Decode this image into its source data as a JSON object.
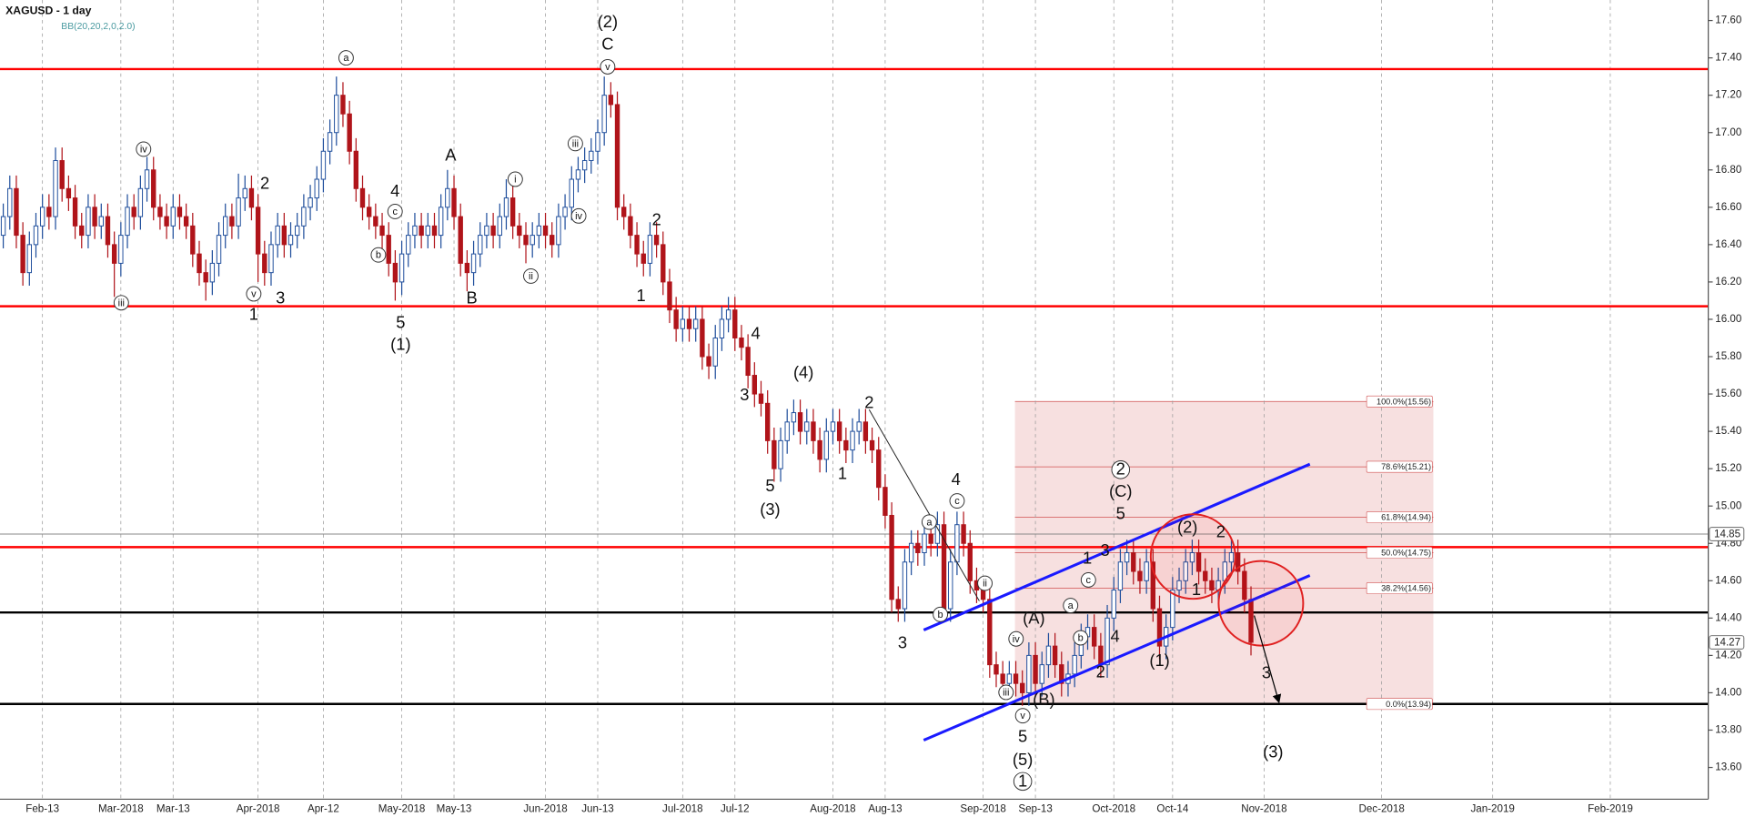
{
  "chart_data": {
    "type": "candlestick",
    "title": "XAGUSD - 1 day",
    "subtitle": "BB(20,20,2,0,2.0)",
    "up_color": "#1f4e9c",
    "down_color": "#b0141a",
    "candles": [
      [
        16.45,
        16.62,
        16.38,
        16.55
      ],
      [
        16.55,
        16.77,
        16.48,
        16.7
      ],
      [
        16.7,
        16.77,
        16.38,
        16.45
      ],
      [
        16.45,
        16.52,
        16.18,
        16.25
      ],
      [
        16.25,
        16.47,
        16.18,
        16.4
      ],
      [
        16.4,
        16.57,
        16.33,
        16.5
      ],
      [
        16.5,
        16.67,
        16.43,
        16.6
      ],
      [
        16.6,
        16.67,
        16.48,
        16.55
      ],
      [
        16.55,
        16.92,
        16.48,
        16.85
      ],
      [
        16.85,
        16.92,
        16.63,
        16.7
      ],
      [
        16.7,
        16.77,
        16.58,
        16.65
      ],
      [
        16.65,
        16.72,
        16.43,
        16.5
      ],
      [
        16.5,
        16.57,
        16.38,
        16.45
      ],
      [
        16.45,
        16.67,
        16.38,
        16.6
      ],
      [
        16.6,
        16.67,
        16.43,
        16.5
      ],
      [
        16.5,
        16.62,
        16.43,
        16.55
      ],
      [
        16.55,
        16.62,
        16.33,
        16.4
      ],
      [
        16.4,
        16.47,
        16.12,
        16.3
      ],
      [
        16.3,
        16.52,
        16.23,
        16.45
      ],
      [
        16.45,
        16.67,
        16.38,
        16.6
      ],
      [
        16.6,
        16.67,
        16.48,
        16.55
      ],
      [
        16.55,
        16.77,
        16.48,
        16.7
      ],
      [
        16.7,
        16.87,
        16.63,
        16.8
      ],
      [
        16.8,
        16.87,
        16.53,
        16.6
      ],
      [
        16.6,
        16.67,
        16.48,
        16.55
      ],
      [
        16.55,
        16.62,
        16.43,
        16.5
      ],
      [
        16.5,
        16.67,
        16.43,
        16.6
      ],
      [
        16.6,
        16.67,
        16.48,
        16.55
      ],
      [
        16.55,
        16.62,
        16.43,
        16.5
      ],
      [
        16.5,
        16.57,
        16.28,
        16.35
      ],
      [
        16.35,
        16.42,
        16.18,
        16.25
      ],
      [
        16.25,
        16.32,
        16.1,
        16.2
      ],
      [
        16.2,
        16.37,
        16.13,
        16.3
      ],
      [
        16.3,
        16.52,
        16.23,
        16.45
      ],
      [
        16.45,
        16.62,
        16.38,
        16.55
      ],
      [
        16.55,
        16.62,
        16.43,
        16.5
      ],
      [
        16.5,
        16.78,
        16.43,
        16.65
      ],
      [
        16.65,
        16.77,
        16.58,
        16.7
      ],
      [
        16.7,
        16.77,
        16.53,
        16.6
      ],
      [
        16.6,
        16.67,
        16.2,
        16.35
      ],
      [
        16.35,
        16.42,
        16.18,
        16.25
      ],
      [
        16.25,
        16.47,
        16.18,
        16.4
      ],
      [
        16.4,
        16.57,
        16.33,
        16.5
      ],
      [
        16.5,
        16.57,
        16.33,
        16.4
      ],
      [
        16.4,
        16.52,
        16.33,
        16.45
      ],
      [
        16.45,
        16.57,
        16.38,
        16.5
      ],
      [
        16.5,
        16.67,
        16.43,
        16.6
      ],
      [
        16.6,
        16.72,
        16.53,
        16.65
      ],
      [
        16.65,
        16.82,
        16.58,
        16.75
      ],
      [
        16.75,
        16.97,
        16.68,
        16.9
      ],
      [
        16.9,
        17.07,
        16.83,
        17.0
      ],
      [
        17.0,
        17.3,
        16.93,
        17.2
      ],
      [
        17.2,
        17.27,
        17.03,
        17.1
      ],
      [
        17.1,
        17.17,
        16.83,
        16.9
      ],
      [
        16.9,
        16.97,
        16.63,
        16.7
      ],
      [
        16.7,
        16.77,
        16.53,
        16.6
      ],
      [
        16.6,
        16.67,
        16.48,
        16.55
      ],
      [
        16.55,
        16.62,
        16.43,
        16.5
      ],
      [
        16.5,
        16.57,
        16.38,
        16.45
      ],
      [
        16.45,
        16.52,
        16.23,
        16.3
      ],
      [
        16.3,
        16.37,
        16.1,
        16.2
      ],
      [
        16.2,
        16.42,
        16.13,
        16.35
      ],
      [
        16.35,
        16.52,
        16.28,
        16.45
      ],
      [
        16.45,
        16.57,
        16.38,
        16.5
      ],
      [
        16.5,
        16.57,
        16.38,
        16.45
      ],
      [
        16.45,
        16.57,
        16.38,
        16.5
      ],
      [
        16.5,
        16.57,
        16.38,
        16.45
      ],
      [
        16.45,
        16.67,
        16.38,
        16.6
      ],
      [
        16.6,
        16.8,
        16.53,
        16.7
      ],
      [
        16.7,
        16.77,
        16.48,
        16.55
      ],
      [
        16.55,
        16.62,
        16.23,
        16.3
      ],
      [
        16.3,
        16.37,
        16.15,
        16.25
      ],
      [
        16.25,
        16.42,
        16.18,
        16.35
      ],
      [
        16.35,
        16.52,
        16.28,
        16.45
      ],
      [
        16.45,
        16.57,
        16.38,
        16.5
      ],
      [
        16.5,
        16.57,
        16.38,
        16.45
      ],
      [
        16.45,
        16.62,
        16.38,
        16.55
      ],
      [
        16.55,
        16.75,
        16.48,
        16.65
      ],
      [
        16.65,
        16.72,
        16.43,
        16.5
      ],
      [
        16.5,
        16.57,
        16.38,
        16.45
      ],
      [
        16.45,
        16.52,
        16.3,
        16.4
      ],
      [
        16.4,
        16.52,
        16.33,
        16.45
      ],
      [
        16.45,
        16.57,
        16.38,
        16.5
      ],
      [
        16.5,
        16.57,
        16.38,
        16.45
      ],
      [
        16.45,
        16.52,
        16.33,
        16.4
      ],
      [
        16.4,
        16.62,
        16.33,
        16.55
      ],
      [
        16.55,
        16.67,
        16.48,
        16.6
      ],
      [
        16.6,
        16.82,
        16.53,
        16.75
      ],
      [
        16.75,
        16.87,
        16.68,
        16.8
      ],
      [
        16.8,
        16.92,
        16.73,
        16.85
      ],
      [
        16.85,
        16.97,
        16.78,
        16.9
      ],
      [
        16.9,
        17.07,
        16.83,
        17.0
      ],
      [
        17.0,
        17.3,
        16.93,
        17.2
      ],
      [
        17.2,
        17.27,
        17.08,
        17.15
      ],
      [
        17.15,
        17.22,
        16.53,
        16.6
      ],
      [
        16.6,
        16.67,
        16.48,
        16.55
      ],
      [
        16.55,
        16.62,
        16.38,
        16.45
      ],
      [
        16.45,
        16.52,
        16.28,
        16.35
      ],
      [
        16.35,
        16.42,
        16.23,
        16.3
      ],
      [
        16.3,
        16.52,
        16.23,
        16.45
      ],
      [
        16.45,
        16.52,
        16.33,
        16.4
      ],
      [
        16.4,
        16.47,
        16.13,
        16.2
      ],
      [
        16.2,
        16.27,
        15.98,
        16.05
      ],
      [
        16.05,
        16.12,
        15.88,
        15.95
      ],
      [
        15.95,
        16.07,
        15.88,
        16.0
      ],
      [
        16.0,
        16.07,
        15.88,
        15.95
      ],
      [
        15.95,
        16.07,
        15.88,
        16.0
      ],
      [
        16.0,
        16.07,
        15.73,
        15.8
      ],
      [
        15.8,
        15.87,
        15.68,
        15.75
      ],
      [
        15.75,
        15.97,
        15.68,
        15.9
      ],
      [
        15.9,
        16.07,
        15.83,
        16.0
      ],
      [
        16.0,
        16.12,
        15.93,
        16.05
      ],
      [
        16.05,
        16.12,
        15.83,
        15.9
      ],
      [
        15.9,
        15.97,
        15.78,
        15.85
      ],
      [
        15.85,
        15.92,
        15.63,
        15.7
      ],
      [
        15.7,
        15.77,
        15.53,
        15.6
      ],
      [
        15.6,
        15.67,
        15.48,
        15.55
      ],
      [
        15.55,
        15.62,
        15.28,
        15.35
      ],
      [
        15.35,
        15.42,
        15.13,
        15.2
      ],
      [
        15.2,
        15.42,
        15.13,
        15.35
      ],
      [
        15.35,
        15.52,
        15.28,
        15.45
      ],
      [
        15.45,
        15.57,
        15.38,
        15.5
      ],
      [
        15.5,
        15.57,
        15.33,
        15.4
      ],
      [
        15.4,
        15.52,
        15.33,
        15.45
      ],
      [
        15.45,
        15.52,
        15.28,
        15.35
      ],
      [
        15.35,
        15.42,
        15.18,
        15.25
      ],
      [
        15.25,
        15.47,
        15.18,
        15.4
      ],
      [
        15.4,
        15.52,
        15.33,
        15.45
      ],
      [
        15.45,
        15.52,
        15.28,
        15.35
      ],
      [
        15.35,
        15.42,
        15.23,
        15.3
      ],
      [
        15.3,
        15.47,
        15.23,
        15.4
      ],
      [
        15.4,
        15.52,
        15.33,
        15.45
      ],
      [
        15.45,
        15.52,
        15.28,
        15.35
      ],
      [
        15.35,
        15.42,
        15.23,
        15.3
      ],
      [
        15.3,
        15.37,
        15.03,
        15.1
      ],
      [
        15.1,
        15.17,
        14.88,
        14.95
      ],
      [
        14.95,
        15.02,
        14.43,
        14.5
      ],
      [
        14.5,
        14.57,
        14.38,
        14.45
      ],
      [
        14.45,
        14.77,
        14.38,
        14.7
      ],
      [
        14.7,
        14.87,
        14.63,
        14.8
      ],
      [
        14.8,
        14.87,
        14.68,
        14.75
      ],
      [
        14.75,
        14.92,
        14.68,
        14.85
      ],
      [
        14.85,
        14.92,
        14.73,
        14.8
      ],
      [
        14.8,
        14.97,
        14.73,
        14.9
      ],
      [
        14.9,
        14.97,
        14.38,
        14.45
      ],
      [
        14.45,
        14.77,
        14.38,
        14.7
      ],
      [
        14.7,
        14.97,
        14.63,
        14.9
      ],
      [
        14.9,
        14.97,
        14.73,
        14.8
      ],
      [
        14.8,
        14.87,
        14.53,
        14.6
      ],
      [
        14.6,
        14.67,
        14.48,
        14.55
      ],
      [
        14.55,
        14.62,
        14.43,
        14.5
      ],
      [
        14.5,
        14.57,
        14.08,
        14.15
      ],
      [
        14.15,
        14.22,
        14.03,
        14.1
      ],
      [
        14.1,
        14.17,
        13.98,
        14.05
      ],
      [
        14.05,
        14.17,
        13.98,
        14.1
      ],
      [
        14.1,
        14.17,
        13.98,
        14.05
      ],
      [
        14.05,
        14.12,
        13.93,
        14.0
      ],
      [
        14.0,
        14.27,
        13.93,
        14.2
      ],
      [
        14.2,
        14.27,
        13.98,
        14.05
      ],
      [
        14.05,
        14.22,
        13.98,
        14.15
      ],
      [
        14.15,
        14.32,
        14.08,
        14.25
      ],
      [
        14.25,
        14.32,
        14.08,
        14.15
      ],
      [
        14.15,
        14.22,
        13.98,
        14.05
      ],
      [
        14.05,
        14.17,
        13.98,
        14.1
      ],
      [
        14.1,
        14.27,
        14.03,
        14.2
      ],
      [
        14.2,
        14.37,
        14.13,
        14.3
      ],
      [
        14.3,
        14.42,
        14.23,
        14.35
      ],
      [
        14.35,
        14.42,
        14.18,
        14.25
      ],
      [
        14.25,
        14.32,
        14.08,
        14.15
      ],
      [
        14.15,
        14.47,
        14.08,
        14.4
      ],
      [
        14.4,
        14.62,
        14.33,
        14.55
      ],
      [
        14.55,
        14.77,
        14.48,
        14.7
      ],
      [
        14.7,
        14.82,
        14.63,
        14.75
      ],
      [
        14.75,
        14.82,
        14.58,
        14.65
      ],
      [
        14.65,
        14.72,
        14.53,
        14.6
      ],
      [
        14.6,
        14.77,
        14.53,
        14.7
      ],
      [
        14.7,
        14.77,
        14.38,
        14.45
      ],
      [
        14.45,
        14.52,
        14.18,
        14.25
      ],
      [
        14.25,
        14.42,
        14.18,
        14.35
      ],
      [
        14.35,
        14.62,
        14.28,
        14.55
      ],
      [
        14.55,
        14.67,
        14.48,
        14.6
      ],
      [
        14.6,
        14.77,
        14.53,
        14.7
      ],
      [
        14.7,
        14.82,
        14.63,
        14.75
      ],
      [
        14.75,
        14.82,
        14.58,
        14.65
      ],
      [
        14.65,
        14.72,
        14.53,
        14.6
      ],
      [
        14.6,
        14.67,
        14.48,
        14.55
      ],
      [
        14.55,
        14.67,
        14.48,
        14.6
      ],
      [
        14.6,
        14.77,
        14.53,
        14.7
      ],
      [
        14.7,
        14.82,
        14.63,
        14.75
      ],
      [
        14.75,
        14.82,
        14.58,
        14.65
      ],
      [
        14.65,
        14.72,
        14.43,
        14.5
      ],
      [
        14.5,
        14.57,
        14.2,
        14.27
      ]
    ],
    "xlim": [
      -0.5,
      261
    ],
    "xticks": [
      {
        "value": 6,
        "label": "Feb-13"
      },
      {
        "value": 18,
        "label": "Mar-2018"
      },
      {
        "value": 26,
        "label": "Mar-13"
      },
      {
        "value": 39,
        "label": "Apr-2018"
      },
      {
        "value": 49,
        "label": "Apr-12"
      },
      {
        "value": 61,
        "label": "May-2018"
      },
      {
        "value": 69,
        "label": "May-13"
      },
      {
        "value": 83,
        "label": "Jun-2018"
      },
      {
        "value": 91,
        "label": "Jun-13"
      },
      {
        "value": 104,
        "label": "Jul-2018"
      },
      {
        "value": 112,
        "label": "Jul-12"
      },
      {
        "value": 127,
        "label": "Aug-2018"
      },
      {
        "value": 135,
        "label": "Aug-13"
      },
      {
        "value": 150,
        "label": "Sep-2018"
      },
      {
        "value": 158,
        "label": "Sep-13"
      },
      {
        "value": 170,
        "label": "Oct-2018"
      },
      {
        "value": 179,
        "label": "Oct-14"
      },
      {
        "value": 193,
        "label": "Nov-2018"
      },
      {
        "value": 211,
        "label": "Dec-2018"
      },
      {
        "value": 228,
        "label": "Jan-2019"
      },
      {
        "value": 246,
        "label": "Feb-2019"
      }
    ],
    "ylim": [
      13.43,
      17.71
    ],
    "yticks": [
      {
        "value": 17.6,
        "label": "17.60"
      },
      {
        "value": 17.4,
        "label": "17.40"
      },
      {
        "value": 17.2,
        "label": "17.20"
      },
      {
        "value": 17,
        "label": "17.00"
      },
      {
        "value": 16.8,
        "label": "16.80"
      },
      {
        "value": 16.6,
        "label": "16.60"
      },
      {
        "value": 16.4,
        "label": "16.40"
      },
      {
        "value": 16.2,
        "label": "16.20"
      },
      {
        "value": 16,
        "label": "16.00"
      },
      {
        "value": 15.8,
        "label": "15.80"
      },
      {
        "value": 15.6,
        "label": "15.60"
      },
      {
        "value": 15.4,
        "label": "15.40"
      },
      {
        "value": 15.2,
        "label": "15.20"
      },
      {
        "value": 15,
        "label": "15.00"
      },
      {
        "value": 14.8,
        "label": "14.80"
      },
      {
        "value": 14.6,
        "label": "14.60"
      },
      {
        "value": 14.4,
        "label": "14.40"
      },
      {
        "value": 14.2,
        "label": "14.20"
      },
      {
        "value": 14,
        "label": "14.00"
      },
      {
        "value": 13.8,
        "label": "13.80"
      },
      {
        "value": 13.6,
        "label": "13.60"
      }
    ],
    "hlines": [
      {
        "value": 17.34,
        "color": "#ff0000"
      },
      {
        "value": 16.07,
        "color": "#ff0000"
      },
      {
        "value": 14.78,
        "color": "#ff0000"
      },
      {
        "value": 14.43,
        "color": "#000000"
      },
      {
        "value": 13.94,
        "color": "#000000"
      }
    ],
    "price_markers": [
      14.85,
      14.27
    ],
    "fibonacci": [
      {
        "value": 15.56,
        "label": "100.0%(15.56)"
      },
      {
        "value": 15.21,
        "label": "78.6%(15.21)"
      },
      {
        "value": 14.94,
        "label": "61.8%(14.94)"
      },
      {
        "value": 14.75,
        "label": "50.0%(14.75)"
      },
      {
        "value": 14.56,
        "label": "38.2%(14.56)"
      },
      {
        "value": 13.94,
        "label": "0.0%(13.94)"
      }
    ],
    "annotations": [
      "(2)",
      "C",
      "v",
      "a",
      "iv",
      "iii",
      "2",
      "v",
      "1",
      "3",
      "4",
      "c",
      "b",
      "5",
      "(1)",
      "A",
      "B",
      "i",
      "ii",
      "iii",
      "iv",
      "2",
      "1",
      "4",
      "3",
      "(4)",
      "5",
      "(3)",
      "2",
      "1",
      "4",
      "c",
      "a",
      "ii",
      "b",
      "3",
      "iii",
      "iv",
      "(A)",
      "(B)",
      "v",
      "5",
      "(5)",
      "1",
      "a",
      "c",
      "b",
      "4",
      "2",
      "1",
      "3",
      "5",
      "(C)",
      "2",
      "(2)",
      "2",
      "1",
      "(1)",
      "3",
      "(3)"
    ]
  }
}
